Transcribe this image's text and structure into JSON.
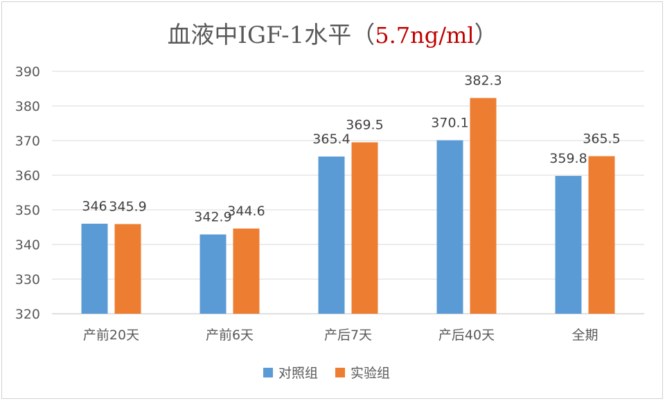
{
  "chart_data": {
    "type": "bar",
    "title": "血液中IGF-1水平（",
    "title_accent": "5.7ng/ml",
    "title_suffix": "）",
    "categories": [
      "产前20天",
      "产前6天",
      "产后7天",
      "产后40天",
      "全期"
    ],
    "series": [
      {
        "name": "对照组",
        "color": "#5b9bd5",
        "values": [
          346,
          342.9,
          365.4,
          370.1,
          359.8
        ],
        "labels": [
          "346",
          "342.9",
          "365.4",
          "370.1",
          "359.8"
        ]
      },
      {
        "name": "实验组",
        "color": "#ed7d31",
        "values": [
          345.9,
          344.6,
          369.5,
          382.3,
          365.5
        ],
        "labels": [
          "345.9",
          "344.6",
          "369.5",
          "382.3",
          "365.5"
        ]
      }
    ],
    "ylim": [
      320,
      390
    ],
    "yticks": [
      320,
      330,
      340,
      350,
      360,
      370,
      380,
      390
    ],
    "grid": true,
    "legend_position": "bottom",
    "xlabel": "",
    "ylabel": ""
  }
}
